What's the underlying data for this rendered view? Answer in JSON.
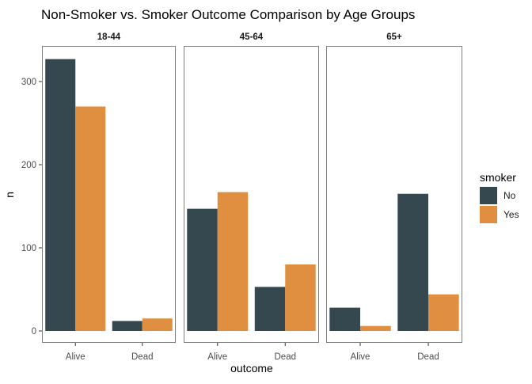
{
  "chart_data": {
    "type": "bar",
    "title": "Non-Smoker vs. Smoker Outcome Comparison by Age Groups",
    "xlabel": "outcome",
    "ylabel": "n",
    "ylim": [
      0,
      340
    ],
    "yticks": [
      0,
      100,
      200,
      300
    ],
    "categories": [
      "Alive",
      "Dead"
    ],
    "legend": {
      "title": "smoker",
      "position": "right",
      "entries": [
        {
          "label": "No",
          "color": "#36484F"
        },
        {
          "label": "Yes",
          "color": "#E08F41"
        }
      ]
    },
    "facets": [
      {
        "label": "18-44",
        "series": [
          {
            "name": "No",
            "values": [
              327,
              12
            ]
          },
          {
            "name": "Yes",
            "values": [
              270,
              15
            ]
          }
        ]
      },
      {
        "label": "45-64",
        "series": [
          {
            "name": "No",
            "values": [
              147,
              53
            ]
          },
          {
            "name": "Yes",
            "values": [
              167,
              80
            ]
          }
        ]
      },
      {
        "label": "65+",
        "series": [
          {
            "name": "No",
            "values": [
              28,
              165
            ]
          },
          {
            "name": "Yes",
            "values": [
              6,
              44
            ]
          }
        ]
      }
    ],
    "grid": false
  }
}
